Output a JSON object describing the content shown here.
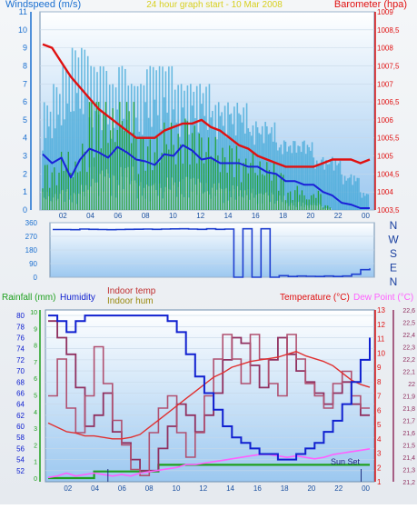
{
  "header": {
    "left_title": "Windspeed (m/s)",
    "center_title": "24 hour graph start - 10 Mar 2008",
    "right_title": "Barometer (hpa)"
  },
  "colors": {
    "wind_color": "#1a6fd0",
    "pressure_color": "#e01010",
    "rain_color": "#1ea01e",
    "humidity_color": "#1020d0",
    "indoor_temp_color": "#d04040",
    "indoor_hum_color": "#903060",
    "temperature_color": "#e03030",
    "dewpoint_color": "#ff60ff",
    "direction_color": "#2040d0",
    "gust_color": "#40a8d8"
  },
  "chart_data": [
    {
      "id": "wind",
      "type": "line",
      "x_ticks": [
        "02",
        "04",
        "06",
        "08",
        "10",
        "12",
        "14",
        "16",
        "18",
        "20",
        "22",
        "00"
      ],
      "left_axis": {
        "label": "Windspeed (m/s)",
        "range": [
          0,
          11
        ],
        "ticks": [
          "0",
          "1",
          "2",
          "3",
          "4",
          "5",
          "6",
          "7",
          "8",
          "9",
          "10",
          "11"
        ]
      },
      "right_axis": {
        "label": "Barometer (hpa)",
        "range": [
          1003.5,
          1009.0
        ],
        "ticks": [
          "1003,5",
          "1004",
          "1004,5",
          "1005",
          "1005,5",
          "1006",
          "1006,5",
          "1007",
          "1007,5",
          "1008",
          "1008,5",
          "1009"
        ]
      },
      "series": [
        {
          "name": "Gust",
          "axis": "left",
          "values": [
            6,
            7,
            8,
            9,
            9,
            8,
            8,
            7,
            8,
            7,
            7,
            8,
            8,
            8,
            7,
            7,
            7,
            7,
            6,
            6,
            6,
            6,
            5,
            5,
            5,
            4,
            4,
            4,
            4,
            3,
            3,
            3,
            2,
            2,
            1,
            1
          ]
        },
        {
          "name": "Average",
          "axis": "left",
          "values": [
            3.1,
            2.6,
            2.9,
            1.8,
            2.8,
            3.4,
            3.2,
            2.9,
            3.5,
            3.2,
            2.8,
            2.7,
            2.5,
            3.1,
            3.0,
            3.6,
            3.3,
            2.8,
            2.9,
            2.6,
            2.6,
            2.6,
            2.4,
            2.4,
            2.1,
            2.0,
            1.6,
            1.6,
            1.4,
            1.4,
            1.0,
            0.8,
            0.4,
            0.3,
            0.1,
            0.1
          ]
        },
        {
          "name": "Wind low",
          "axis": "left",
          "values": [
            1.0,
            0.9,
            1.2,
            1.0,
            1.4,
            2.4,
            2.3,
            2.1,
            2.4,
            2.4,
            1.6,
            1.5,
            1.5,
            1.8,
            1.6,
            2.0,
            1.8,
            1.5,
            1.5,
            1.3,
            1.4,
            1.1,
            1.2,
            1.0,
            1.0,
            0.8,
            0.4,
            0.5,
            0.3,
            0.4,
            0.1,
            0.0,
            0.0,
            0.0,
            0.0,
            0.0
          ]
        },
        {
          "name": "Barometer",
          "axis": "right",
          "values": [
            1008.1,
            1008.0,
            1007.6,
            1007.2,
            1006.9,
            1006.6,
            1006.3,
            1006.1,
            1005.9,
            1005.7,
            1005.5,
            1005.5,
            1005.5,
            1005.7,
            1005.8,
            1005.9,
            1005.9,
            1006.0,
            1005.8,
            1005.7,
            1005.5,
            1005.3,
            1005.2,
            1005.0,
            1004.9,
            1004.8,
            1004.7,
            1004.7,
            1004.7,
            1004.7,
            1004.8,
            1004.9,
            1004.9,
            1004.9,
            1004.8,
            1004.9
          ]
        }
      ]
    },
    {
      "id": "direction",
      "type": "line",
      "left_ticks": [
        "360",
        "270",
        "180",
        "90",
        "0"
      ],
      "right_ticks": [
        "N",
        "W",
        "S",
        "E",
        "N"
      ],
      "range": [
        0,
        360
      ],
      "series": [
        {
          "name": "Direction",
          "values": [
            315,
            315,
            314,
            318,
            316,
            315,
            314,
            315,
            316,
            317,
            318,
            316,
            318,
            319,
            320,
            318,
            316,
            320,
            316,
            318,
            0,
            320,
            0,
            320,
            0,
            10,
            5,
            8,
            6,
            5,
            8,
            5,
            8,
            20,
            50,
            58
          ]
        }
      ]
    },
    {
      "id": "temperature",
      "type": "line",
      "x_ticks": [
        "02",
        "04",
        "06",
        "08",
        "10",
        "12",
        "14",
        "16",
        "18",
        "20",
        "22",
        "00"
      ],
      "left_axis": {
        "label": "Rainfall (mm)",
        "range": [
          0,
          10
        ],
        "ticks": [
          "0",
          "1",
          "2",
          "3",
          "4",
          "5",
          "6",
          "7",
          "8",
          "9",
          "10"
        ]
      },
      "humidity_axis": {
        "label": "Humidity",
        "range": [
          50,
          81
        ],
        "ticks": [
          "52",
          "54",
          "56",
          "58",
          "60",
          "62",
          "64",
          "66",
          "68",
          "70",
          "72",
          "74",
          "76",
          "78",
          "80"
        ]
      },
      "right_axis": {
        "label": "Temperature (°C)",
        "range": [
          1,
          13
        ],
        "ticks": [
          "1",
          "2",
          "3",
          "4",
          "5",
          "6",
          "7",
          "8",
          "9",
          "10",
          "11",
          "12",
          "13"
        ]
      },
      "far_right_axis": {
        "label": "Dew Point (°C)",
        "range": [
          21.2,
          22.6
        ],
        "ticks": [
          "21,2",
          "21,3",
          "21,4",
          "21,5",
          "21,6",
          "21,7",
          "21,8",
          "21,9",
          "22",
          "22,1",
          "22,2",
          "22,3",
          "22,4",
          "22,5",
          "22,6"
        ]
      },
      "legend_labels": [
        "Rainfall (mm)",
        "Humidity",
        "Indoor temp",
        "Indoor hum",
        "Temperature (°C)",
        "Dew Point (°C)"
      ],
      "annotation": "Sun Set",
      "series": [
        {
          "name": "Rainfall",
          "axis": "left",
          "values": [
            0,
            0,
            0,
            0,
            0,
            0.4,
            0.4,
            0.4,
            0.4,
            0.4,
            0.4,
            0.4,
            0.8,
            0.8,
            0.8,
            0.8,
            0.8,
            0.8,
            0.8,
            0.8,
            0.8,
            0.8,
            0.8,
            0.8,
            0.8,
            0.8,
            0.8,
            0.8,
            0.8,
            0.8,
            0.8,
            0.8,
            0.8,
            0.8,
            0.8,
            0.8
          ]
        },
        {
          "name": "Humidity",
          "axis": "humidity",
          "values": [
            80,
            79,
            77,
            79,
            80,
            80,
            80,
            80,
            80,
            80,
            80,
            80,
            80,
            79,
            77,
            73,
            69,
            66,
            63,
            60,
            58,
            57,
            56,
            55,
            55,
            54,
            54,
            55,
            56,
            57,
            59,
            61,
            64,
            68,
            72,
            76
          ]
        },
        {
          "name": "Indoor temp",
          "axis": "far_right",
          "values": [
            21.9,
            22.2,
            21.8,
            21.6,
            21.9,
            22.3,
            22.0,
            21.7,
            21.5,
            21.3,
            21.25,
            21.6,
            21.8,
            21.9,
            21.6,
            21.4,
            21.6,
            21.9,
            22.2,
            22.4,
            22.2,
            22.0,
            22.4,
            22.2,
            22.0,
            21.9,
            22.4,
            22.2,
            22.0,
            21.9,
            21.8,
            22.0,
            22.1,
            21.9,
            21.8,
            21.8
          ]
        },
        {
          "name": "Indoor hum",
          "axis": "humidity",
          "values": [
            79,
            76,
            73,
            67,
            60,
            62,
            66,
            59,
            57,
            54,
            52,
            52,
            56,
            60,
            64,
            62,
            59,
            62,
            66,
            72,
            76,
            75,
            71,
            67,
            72,
            76,
            73,
            70,
            68,
            66,
            64,
            66,
            68,
            64,
            62,
            62
          ]
        },
        {
          "name": "Temperature",
          "axis": "right",
          "values": [
            5.1,
            4.8,
            4.5,
            4.4,
            4.2,
            4.2,
            4.1,
            4.0,
            4.0,
            4.1,
            4.3,
            4.8,
            5.3,
            5.8,
            6.3,
            6.8,
            7.3,
            7.8,
            8.3,
            8.6,
            9.0,
            9.2,
            9.4,
            9.5,
            9.6,
            9.7,
            9.9,
            10.1,
            9.8,
            9.6,
            9.4,
            9.1,
            8.6,
            8.1,
            7.8,
            7.6
          ]
        },
        {
          "name": "Dew Point",
          "axis": "right",
          "values": [
            1.3,
            1.4,
            1.6,
            1.4,
            1.5,
            1.6,
            1.5,
            1.4,
            1.5,
            1.4,
            1.6,
            1.7,
            1.8,
            1.9,
            2.0,
            2.2,
            2.2,
            2.3,
            2.4,
            2.5,
            2.6,
            2.7,
            2.8,
            2.9,
            2.9,
            2.8,
            2.7,
            2.8,
            2.7,
            2.6,
            2.7,
            2.9,
            3.0,
            3.1,
            3.2,
            3.3
          ]
        }
      ]
    }
  ]
}
